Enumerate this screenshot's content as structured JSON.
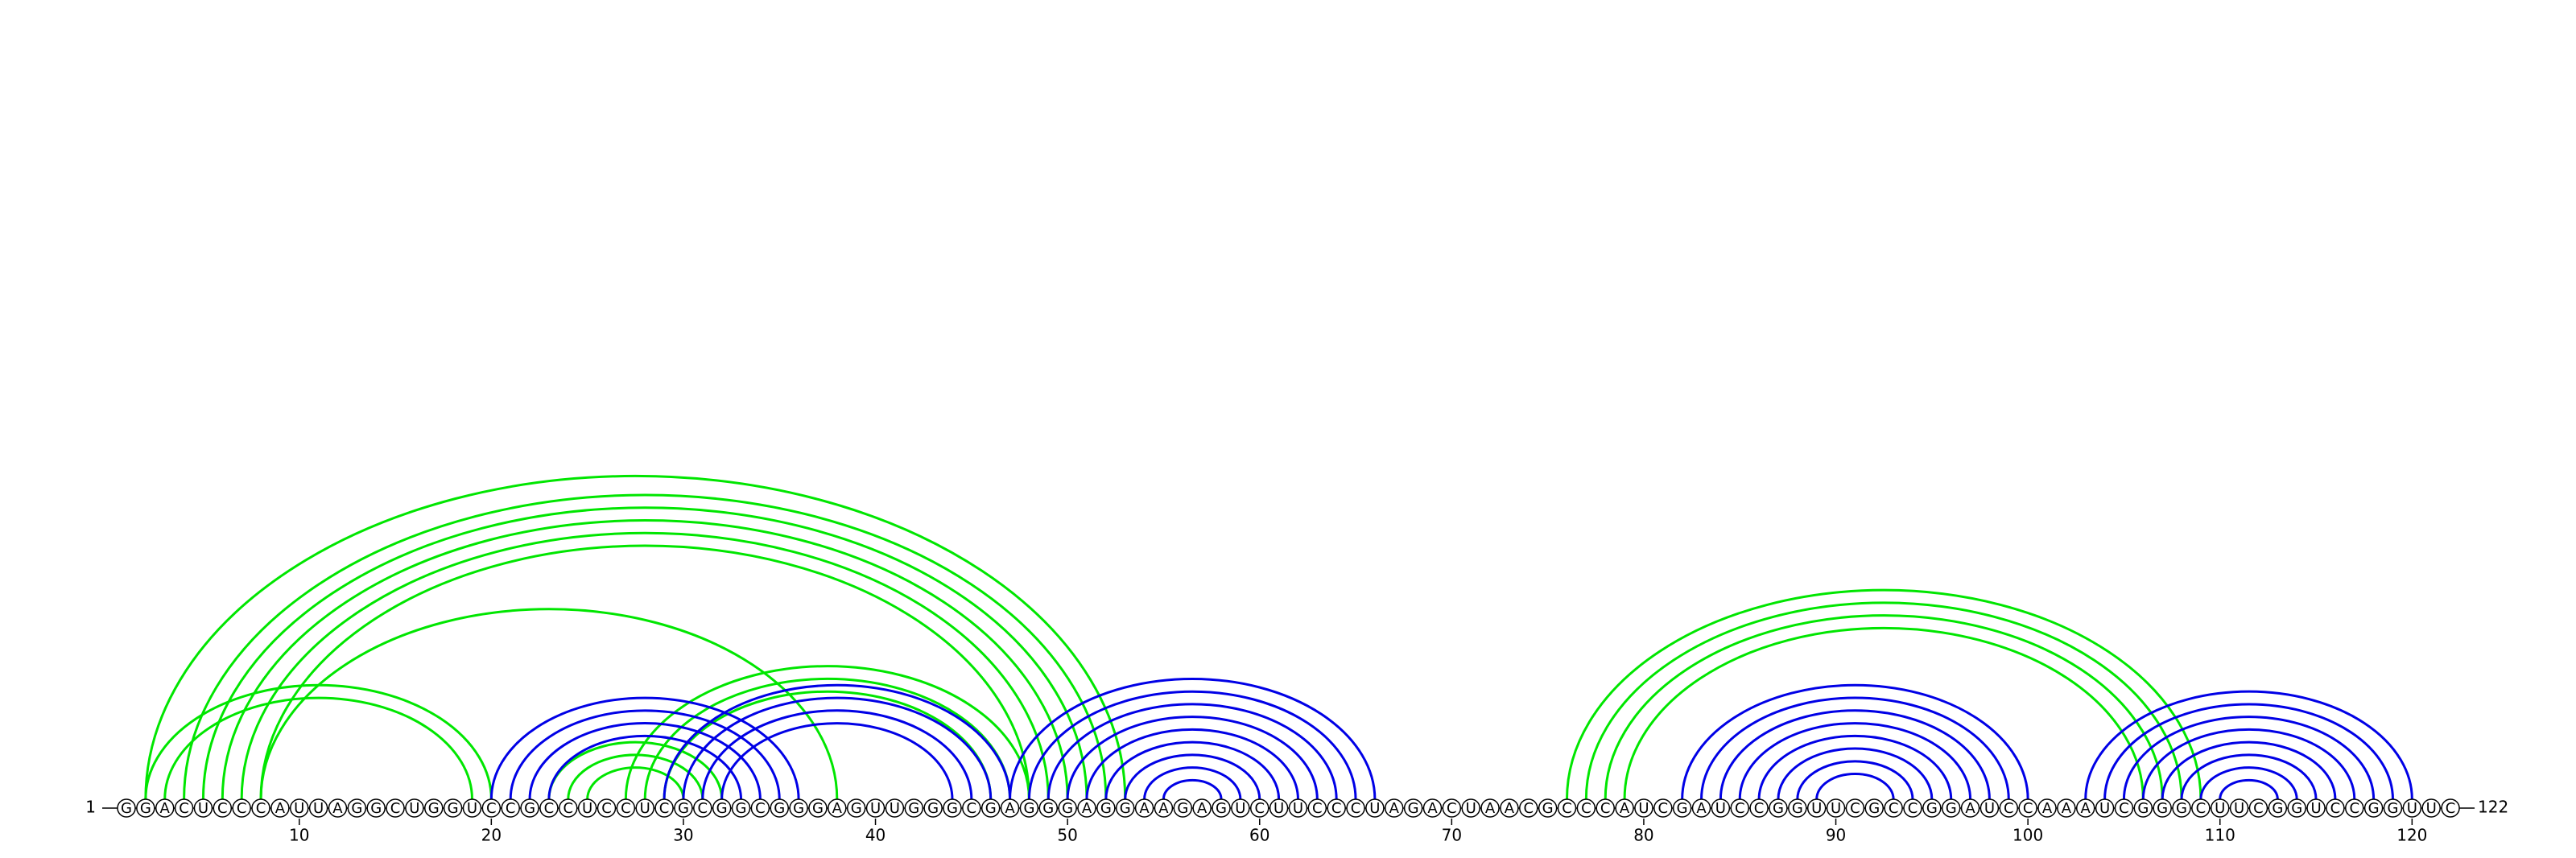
{
  "sequence": [
    "G",
    "G",
    "A",
    "C",
    "U",
    "C",
    "C",
    "C",
    "A",
    "U",
    "U",
    "A",
    "G",
    "G",
    "C",
    "U",
    "G",
    "G",
    "U",
    "C",
    "C",
    "G",
    "C",
    "C",
    "U",
    "C",
    "C",
    "U",
    "C",
    "G",
    "C",
    "G",
    "G",
    "C",
    "G",
    "G",
    "G",
    "A",
    "G",
    "U",
    "U",
    "G",
    "G",
    "G",
    "C",
    "G",
    "A",
    "G",
    "G",
    "G",
    "A",
    "G",
    "G",
    "A",
    "A",
    "G",
    "A",
    "G",
    "U",
    "C",
    "U",
    "U",
    "C",
    "C",
    "C",
    "U",
    "A",
    "G",
    "A",
    "C",
    "U",
    "A",
    "A",
    "C",
    "G",
    "C",
    "C",
    "C",
    "A",
    "U",
    "C",
    "G",
    "A",
    "U",
    "C",
    "C",
    "G",
    "G",
    "U",
    "U",
    "C",
    "G",
    "C",
    "C",
    "G",
    "G",
    "A",
    "U",
    "C",
    "C",
    "A",
    "A",
    "A",
    "U",
    "C",
    "G",
    "G",
    "G",
    "C",
    "U",
    "U",
    "C",
    "G",
    "G",
    "U",
    "C",
    "C",
    "G",
    "G",
    "U",
    "U",
    "C"
  ],
  "start": 1,
  "end": 122,
  "ticks": [
    10,
    20,
    30,
    40,
    50,
    60,
    70,
    80,
    90,
    100,
    110,
    120
  ],
  "pairs": [
    {
      "from": 2,
      "to": 53,
      "color": "#00e600"
    },
    {
      "from": 4,
      "to": 52,
      "color": "#00e600"
    },
    {
      "from": 5,
      "to": 51,
      "color": "#00e600"
    },
    {
      "from": 6,
      "to": 50,
      "color": "#00e600"
    },
    {
      "from": 7,
      "to": 49,
      "color": "#00e600"
    },
    {
      "from": 8,
      "to": 48,
      "color": "#00e600"
    },
    {
      "from": 8,
      "to": 38,
      "color": "#00e600"
    },
    {
      "from": 2,
      "to": 20,
      "color": "#00e600"
    },
    {
      "from": 3,
      "to": 19,
      "color": "#00e600"
    },
    {
      "from": 23,
      "to": 32,
      "color": "#00e600"
    },
    {
      "from": 24,
      "to": 31,
      "color": "#00e600"
    },
    {
      "from": 25,
      "to": 30,
      "color": "#00e600"
    },
    {
      "from": 27,
      "to": 48,
      "color": "#00e600"
    },
    {
      "from": 28,
      "to": 47,
      "color": "#00e600"
    },
    {
      "from": 29,
      "to": 46,
      "color": "#00e600"
    },
    {
      "from": 20,
      "to": 36,
      "color": "#0000e6"
    },
    {
      "from": 21,
      "to": 35,
      "color": "#0000e6"
    },
    {
      "from": 22,
      "to": 34,
      "color": "#0000e6"
    },
    {
      "from": 23,
      "to": 33,
      "color": "#0000e6"
    },
    {
      "from": 29,
      "to": 47,
      "color": "#0000e6"
    },
    {
      "from": 30,
      "to": 46,
      "color": "#0000e6"
    },
    {
      "from": 31,
      "to": 45,
      "color": "#0000e6"
    },
    {
      "from": 32,
      "to": 44,
      "color": "#0000e6"
    },
    {
      "from": 47,
      "to": 66,
      "color": "#0000e6"
    },
    {
      "from": 48,
      "to": 65,
      "color": "#0000e6"
    },
    {
      "from": 49,
      "to": 64,
      "color": "#0000e6"
    },
    {
      "from": 50,
      "to": 63,
      "color": "#0000e6"
    },
    {
      "from": 51,
      "to": 62,
      "color": "#0000e6"
    },
    {
      "from": 52,
      "to": 61,
      "color": "#0000e6"
    },
    {
      "from": 53,
      "to": 60,
      "color": "#0000e6"
    },
    {
      "from": 54,
      "to": 59,
      "color": "#0000e6"
    },
    {
      "from": 55,
      "to": 58,
      "color": "#0000e6"
    },
    {
      "from": 76,
      "to": 109,
      "color": "#00e600"
    },
    {
      "from": 77,
      "to": 108,
      "color": "#00e600"
    },
    {
      "from": 78,
      "to": 107,
      "color": "#00e600"
    },
    {
      "from": 79,
      "to": 106,
      "color": "#00e600"
    },
    {
      "from": 82,
      "to": 100,
      "color": "#0000e6"
    },
    {
      "from": 83,
      "to": 99,
      "color": "#0000e6"
    },
    {
      "from": 84,
      "to": 98,
      "color": "#0000e6"
    },
    {
      "from": 85,
      "to": 97,
      "color": "#0000e6"
    },
    {
      "from": 86,
      "to": 96,
      "color": "#0000e6"
    },
    {
      "from": 87,
      "to": 95,
      "color": "#0000e6"
    },
    {
      "from": 88,
      "to": 94,
      "color": "#0000e6"
    },
    {
      "from": 89,
      "to": 93,
      "color": "#0000e6"
    },
    {
      "from": 103,
      "to": 120,
      "color": "#0000e6"
    },
    {
      "from": 104,
      "to": 119,
      "color": "#0000e6"
    },
    {
      "from": 105,
      "to": 118,
      "color": "#0000e6"
    },
    {
      "from": 106,
      "to": 117,
      "color": "#0000e6"
    },
    {
      "from": 107,
      "to": 116,
      "color": "#0000e6"
    },
    {
      "from": 108,
      "to": 115,
      "color": "#0000e6"
    },
    {
      "from": 109,
      "to": 114,
      "color": "#0000e6"
    },
    {
      "from": 110,
      "to": 113,
      "color": "#0000e6"
    }
  ]
}
